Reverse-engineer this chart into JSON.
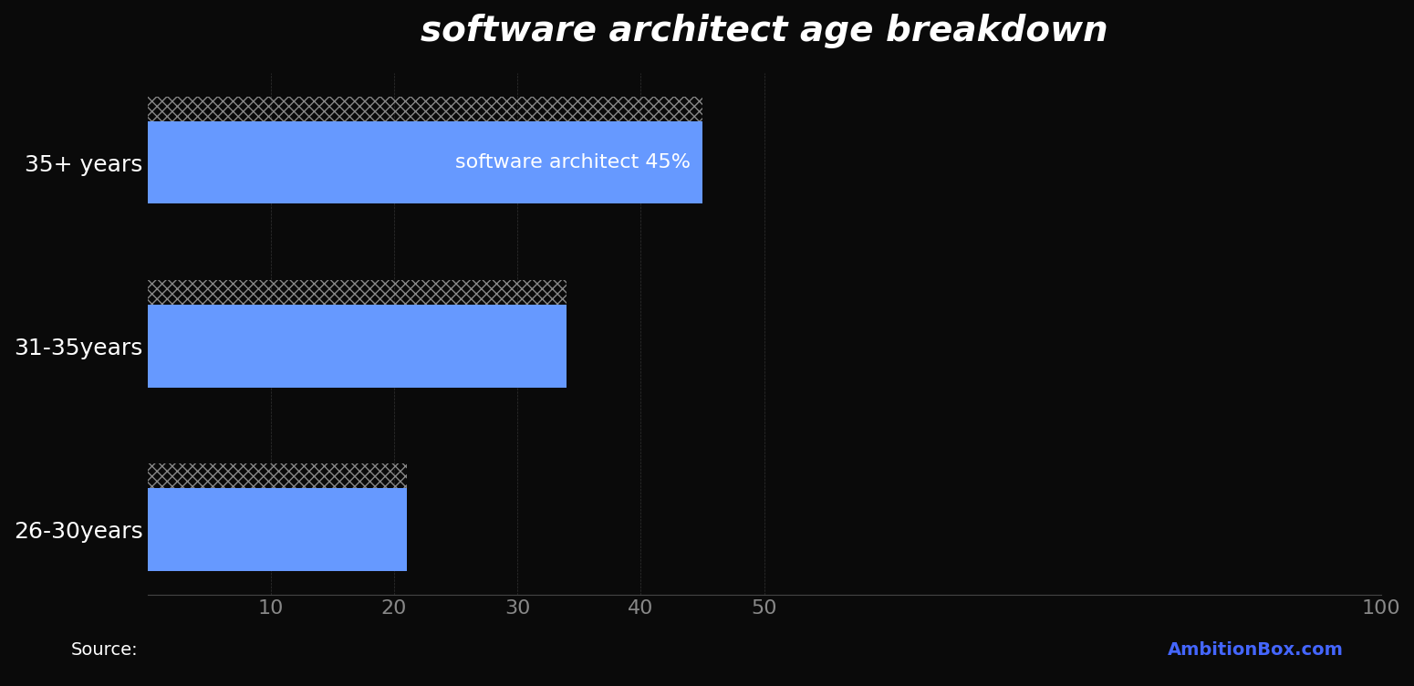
{
  "title": "software architect age breakdown",
  "title_fontsize": 28,
  "title_color": "#ffffff",
  "background_color": "#0a0a0a",
  "bar_color": "#6699ff",
  "categories": [
    "35+ years",
    "31-35years",
    "26-30years"
  ],
  "values": [
    45,
    34,
    21
  ],
  "bar_label": "software architect 45%",
  "bar_label_index": 0,
  "xlim": [
    0,
    100
  ],
  "xticks": [
    10,
    20,
    30,
    40,
    50,
    100
  ],
  "tick_color": "#888888",
  "tick_fontsize": 16,
  "ytick_fontsize": 18,
  "ytick_color": "#ffffff",
  "source_left": "Source:",
  "source_right": "AmbitionBox.com",
  "source_fontsize": 14,
  "source_color_left": "#ffffff",
  "source_color_right": "#4466ff",
  "grid_color": "#333333",
  "bar_height": 0.45,
  "bar_label_fontsize": 16,
  "bar_label_color": "#ffffff"
}
